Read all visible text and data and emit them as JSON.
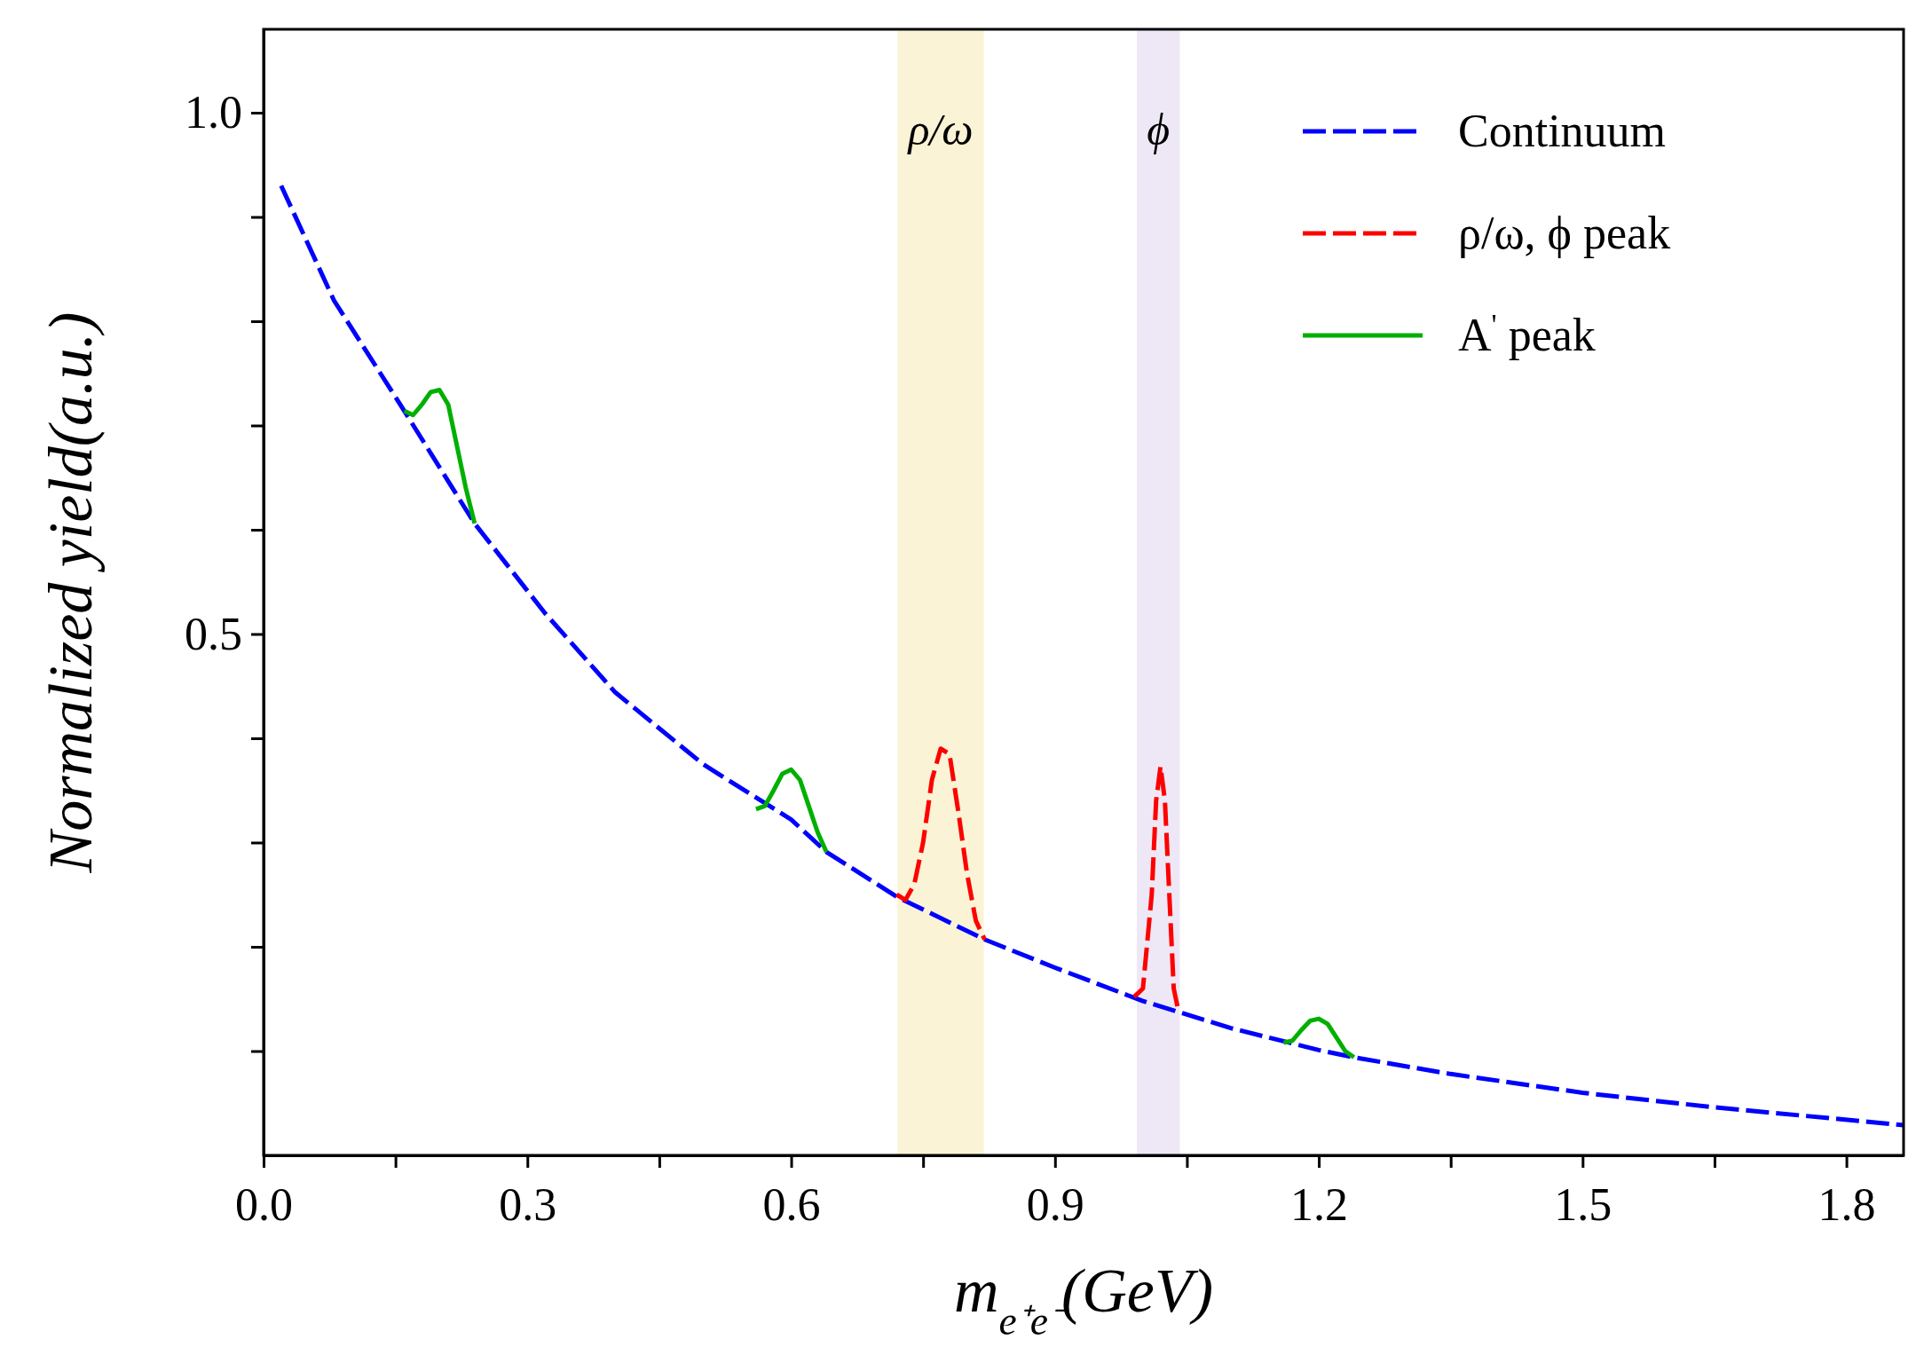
{
  "chart_data": {
    "type": "line",
    "xlabel": "m$_{e⁺e⁻}$(GeV)",
    "ylabel": "Normalized yield(a.u.)",
    "xlim": [
      0,
      1.865
    ],
    "ylim": [
      0,
      1.08
    ],
    "xticks": [
      {
        "value": 0,
        "label": "0.0"
      },
      {
        "value": 0.15,
        "label": null
      },
      0.3,
      {
        "value": 0.45,
        "label": null
      },
      0.6,
      {
        "value": 0.75,
        "label": null
      },
      0.9,
      {
        "value": 1.05,
        "label": null
      },
      1.2,
      {
        "value": 1.35,
        "label": null
      },
      1.5,
      {
        "value": 1.65,
        "label": null
      },
      1.8
    ],
    "yticks": [
      {
        "value": 0.1,
        "label": null
      },
      {
        "value": 0.2,
        "label": null
      },
      {
        "value": 0.3,
        "label": null
      },
      {
        "value": 0.4,
        "label": null
      },
      0.5,
      {
        "value": 0.6,
        "label": null
      },
      {
        "value": 0.7,
        "label": null
      },
      {
        "value": 0.8,
        "label": null
      },
      {
        "value": 0.9,
        "label": null
      },
      {
        "value": 1,
        "label": "1.0"
      }
    ],
    "legend": "top right",
    "grid": false,
    "bands": [
      {
        "axis": "x",
        "from": 0.721,
        "to": 0.819,
        "label": "ρ/ω",
        "color": "#faf3d6"
      },
      {
        "axis": "x",
        "from": 0.993,
        "to": 1.042,
        "label": "ϕ",
        "color": "#eee8f6"
      }
    ],
    "series": [
      {
        "name": "Continuum",
        "color": "#0000ff",
        "line_style": "dashed",
        "x": [
          0.02,
          0.08,
          0.16,
          0.24,
          0.32,
          0.4,
          0.5,
          0.6,
          0.64,
          0.72,
          0.82,
          0.9,
          1.0,
          1.1,
          1.2,
          1.24,
          1.35,
          1.5,
          1.65,
          1.865
        ],
        "values": [
          0.93,
          0.82,
          0.714,
          0.606,
          0.52,
          0.444,
          0.375,
          0.322,
          0.291,
          0.248,
          0.207,
          0.18,
          0.148,
          0.122,
          0.101,
          0.094,
          0.078,
          0.06,
          0.046,
          0.029
        ]
      },
      {
        "name": "ρ/ω,  ϕ peak",
        "color": "#ff0000",
        "line_style": "dashed",
        "x": [
          0.72,
          0.73,
          0.74,
          0.75,
          0.76,
          0.77,
          0.78,
          0.79,
          0.8,
          0.81,
          0.82,
          0.9,
          0.99,
          1.0,
          1.01,
          1.015,
          1.02,
          1.025,
          1.03,
          1.035,
          1.04
        ],
        "values": [
          0.25,
          0.245,
          0.26,
          0.3,
          0.36,
          0.39,
          0.385,
          0.33,
          0.27,
          0.225,
          0.207,
          null,
          0.152,
          0.16,
          0.25,
          0.34,
          0.373,
          0.34,
          0.25,
          0.16,
          0.14
        ]
      },
      {
        "name": "A$^{'}$ peak",
        "color": "#00b000",
        "line_style": "solid",
        "x": [
          0.16,
          0.17,
          0.18,
          0.19,
          0.2,
          0.21,
          0.22,
          0.23,
          0.24,
          0.4,
          0.56,
          0.57,
          0.58,
          0.59,
          0.6,
          0.61,
          0.62,
          0.63,
          0.64,
          0.9,
          1.16,
          1.17,
          1.18,
          1.19,
          1.2,
          1.21,
          1.22,
          1.23,
          1.24
        ],
        "values": [
          0.714,
          0.71,
          0.72,
          0.732,
          0.734,
          0.72,
          0.68,
          0.64,
          0.606,
          null,
          0.332,
          0.335,
          0.35,
          0.366,
          0.37,
          0.36,
          0.335,
          0.31,
          0.291,
          null,
          0.108,
          0.11,
          0.12,
          0.129,
          0.131,
          0.126,
          0.113,
          0.1,
          0.094
        ]
      }
    ]
  }
}
